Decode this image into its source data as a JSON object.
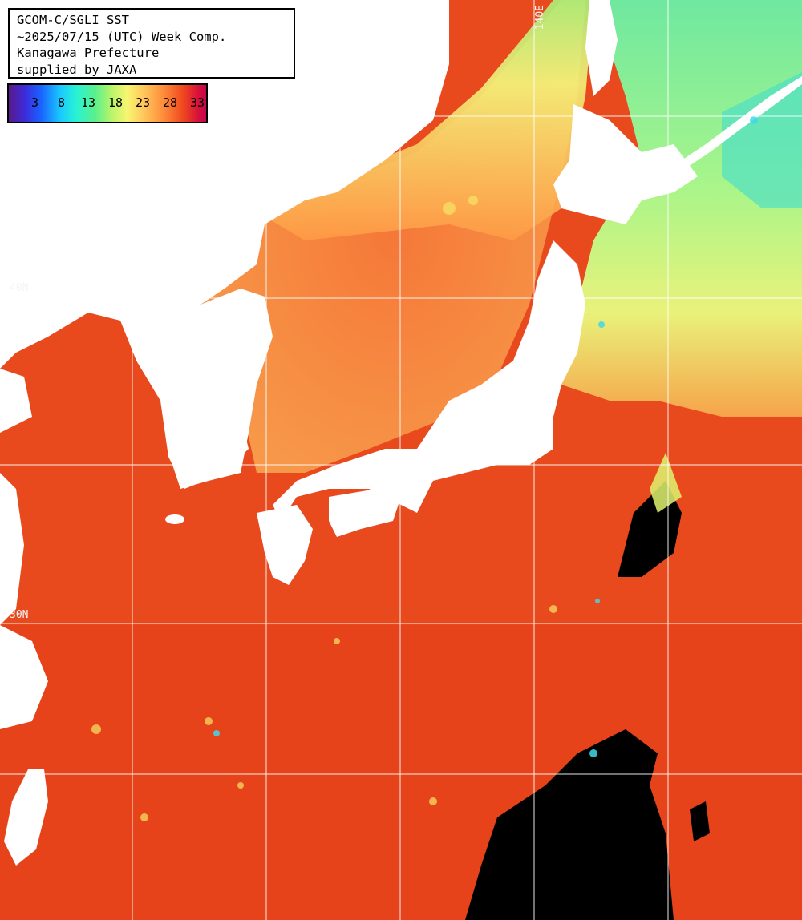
{
  "title": {
    "line1": "GCOM-C/SGLI SST",
    "line2": "~2025/07/15 (UTC) Week Comp.",
    "line3": "Kanagawa Prefecture",
    "line4": "supplied by JAXA"
  },
  "colorbar": {
    "ticks": [
      "3",
      "8",
      "13",
      "18",
      "23",
      "28",
      "33"
    ],
    "units": "",
    "colors": [
      "#5a1a8a",
      "#1a60ff",
      "#27f2d6",
      "#b6f56a",
      "#f8f570",
      "#ff8f3c",
      "#d8103a"
    ]
  },
  "grid_labels": {
    "lon_140": "140E",
    "lat_40": "40N",
    "lat_30": "30N"
  },
  "colors": {
    "land": "#ffffff",
    "cloud_missing": "#000000",
    "warm_sea": "#e8431c",
    "cool_sea": "#8ef07c",
    "grid": "#ffffff"
  }
}
